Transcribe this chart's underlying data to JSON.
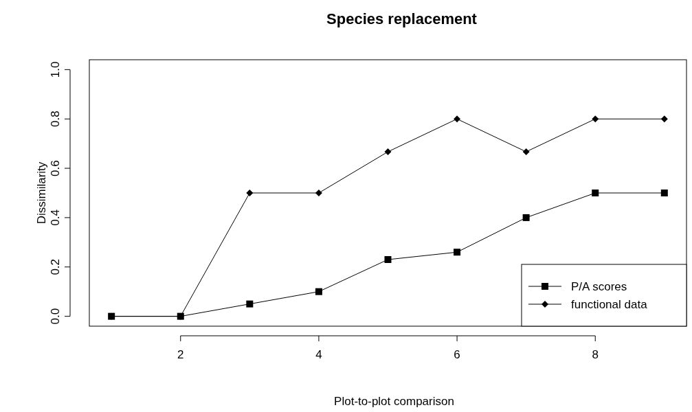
{
  "chart_data": {
    "type": "line",
    "title": "Species replacement",
    "xlabel": "Plot-to-plot comparison",
    "ylabel": "Dissimilarity",
    "x": [
      1,
      2,
      3,
      4,
      5,
      6,
      7,
      8,
      9
    ],
    "series": [
      {
        "name": "P/A scores",
        "color": "#000000",
        "marker": "square",
        "values": [
          0,
          0,
          0.05,
          0.1,
          0.23,
          0.26,
          0.4,
          0.5,
          0.5
        ]
      },
      {
        "name": "functional data",
        "color": "#000000",
        "marker": "diamond",
        "values": [
          0,
          0,
          0.5,
          0.5,
          0.667,
          0.8,
          0.667,
          0.8,
          0.8
        ]
      }
    ],
    "xlim": [
      0.68,
      9.32
    ],
    "xticks": [
      2,
      4,
      6,
      8
    ],
    "ylim": [
      -0.04,
      1.04
    ],
    "yticks": [
      {
        "value": 0,
        "label": "0.0"
      },
      {
        "value": 0.2,
        "label": "0.2"
      },
      {
        "value": 0.4,
        "label": "0.4"
      },
      {
        "value": 0.6,
        "label": "0.6"
      },
      {
        "value": 0.8,
        "label": "0.8"
      },
      {
        "value": 1,
        "label": "1.0"
      }
    ],
    "legend": "bottom right",
    "grid": false,
    "line_style": "solid"
  }
}
